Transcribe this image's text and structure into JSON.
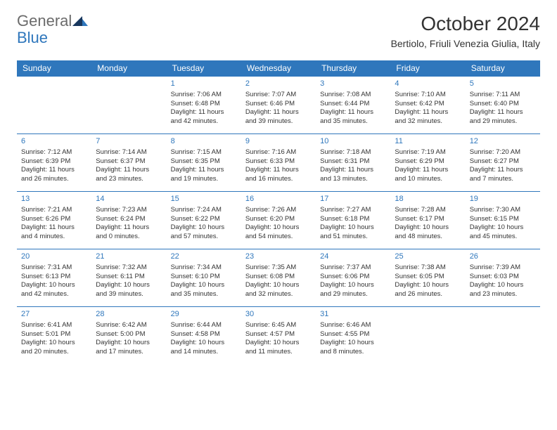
{
  "brand": {
    "line1": "General",
    "line2": "Blue"
  },
  "title": "October 2024",
  "location": "Bertiolo, Friuli Venezia Giulia, Italy",
  "colors": {
    "header_bg": "#2f77bc",
    "header_text": "#ffffff",
    "daynum_text": "#2f77bc",
    "body_text": "#333333",
    "row_border": "#2f77bc",
    "logo_gray": "#6b6b6b",
    "logo_blue": "#2f77bc",
    "background": "#ffffff"
  },
  "daysOfWeek": [
    "Sunday",
    "Monday",
    "Tuesday",
    "Wednesday",
    "Thursday",
    "Friday",
    "Saturday"
  ],
  "weeks": [
    [
      null,
      null,
      {
        "n": "1",
        "sunrise": "7:06 AM",
        "sunset": "6:48 PM",
        "dh": "11",
        "dm": "42"
      },
      {
        "n": "2",
        "sunrise": "7:07 AM",
        "sunset": "6:46 PM",
        "dh": "11",
        "dm": "39"
      },
      {
        "n": "3",
        "sunrise": "7:08 AM",
        "sunset": "6:44 PM",
        "dh": "11",
        "dm": "35"
      },
      {
        "n": "4",
        "sunrise": "7:10 AM",
        "sunset": "6:42 PM",
        "dh": "11",
        "dm": "32"
      },
      {
        "n": "5",
        "sunrise": "7:11 AM",
        "sunset": "6:40 PM",
        "dh": "11",
        "dm": "29"
      }
    ],
    [
      {
        "n": "6",
        "sunrise": "7:12 AM",
        "sunset": "6:39 PM",
        "dh": "11",
        "dm": "26"
      },
      {
        "n": "7",
        "sunrise": "7:14 AM",
        "sunset": "6:37 PM",
        "dh": "11",
        "dm": "23"
      },
      {
        "n": "8",
        "sunrise": "7:15 AM",
        "sunset": "6:35 PM",
        "dh": "11",
        "dm": "19"
      },
      {
        "n": "9",
        "sunrise": "7:16 AM",
        "sunset": "6:33 PM",
        "dh": "11",
        "dm": "16"
      },
      {
        "n": "10",
        "sunrise": "7:18 AM",
        "sunset": "6:31 PM",
        "dh": "11",
        "dm": "13"
      },
      {
        "n": "11",
        "sunrise": "7:19 AM",
        "sunset": "6:29 PM",
        "dh": "11",
        "dm": "10"
      },
      {
        "n": "12",
        "sunrise": "7:20 AM",
        "sunset": "6:27 PM",
        "dh": "11",
        "dm": "7"
      }
    ],
    [
      {
        "n": "13",
        "sunrise": "7:21 AM",
        "sunset": "6:26 PM",
        "dh": "11",
        "dm": "4"
      },
      {
        "n": "14",
        "sunrise": "7:23 AM",
        "sunset": "6:24 PM",
        "dh": "11",
        "dm": "0"
      },
      {
        "n": "15",
        "sunrise": "7:24 AM",
        "sunset": "6:22 PM",
        "dh": "10",
        "dm": "57"
      },
      {
        "n": "16",
        "sunrise": "7:26 AM",
        "sunset": "6:20 PM",
        "dh": "10",
        "dm": "54"
      },
      {
        "n": "17",
        "sunrise": "7:27 AM",
        "sunset": "6:18 PM",
        "dh": "10",
        "dm": "51"
      },
      {
        "n": "18",
        "sunrise": "7:28 AM",
        "sunset": "6:17 PM",
        "dh": "10",
        "dm": "48"
      },
      {
        "n": "19",
        "sunrise": "7:30 AM",
        "sunset": "6:15 PM",
        "dh": "10",
        "dm": "45"
      }
    ],
    [
      {
        "n": "20",
        "sunrise": "7:31 AM",
        "sunset": "6:13 PM",
        "dh": "10",
        "dm": "42"
      },
      {
        "n": "21",
        "sunrise": "7:32 AM",
        "sunset": "6:11 PM",
        "dh": "10",
        "dm": "39"
      },
      {
        "n": "22",
        "sunrise": "7:34 AM",
        "sunset": "6:10 PM",
        "dh": "10",
        "dm": "35"
      },
      {
        "n": "23",
        "sunrise": "7:35 AM",
        "sunset": "6:08 PM",
        "dh": "10",
        "dm": "32"
      },
      {
        "n": "24",
        "sunrise": "7:37 AM",
        "sunset": "6:06 PM",
        "dh": "10",
        "dm": "29"
      },
      {
        "n": "25",
        "sunrise": "7:38 AM",
        "sunset": "6:05 PM",
        "dh": "10",
        "dm": "26"
      },
      {
        "n": "26",
        "sunrise": "7:39 AM",
        "sunset": "6:03 PM",
        "dh": "10",
        "dm": "23"
      }
    ],
    [
      {
        "n": "27",
        "sunrise": "6:41 AM",
        "sunset": "5:01 PM",
        "dh": "10",
        "dm": "20"
      },
      {
        "n": "28",
        "sunrise": "6:42 AM",
        "sunset": "5:00 PM",
        "dh": "10",
        "dm": "17"
      },
      {
        "n": "29",
        "sunrise": "6:44 AM",
        "sunset": "4:58 PM",
        "dh": "10",
        "dm": "14"
      },
      {
        "n": "30",
        "sunrise": "6:45 AM",
        "sunset": "4:57 PM",
        "dh": "10",
        "dm": "11"
      },
      {
        "n": "31",
        "sunrise": "6:46 AM",
        "sunset": "4:55 PM",
        "dh": "10",
        "dm": "8"
      },
      null,
      null
    ]
  ]
}
